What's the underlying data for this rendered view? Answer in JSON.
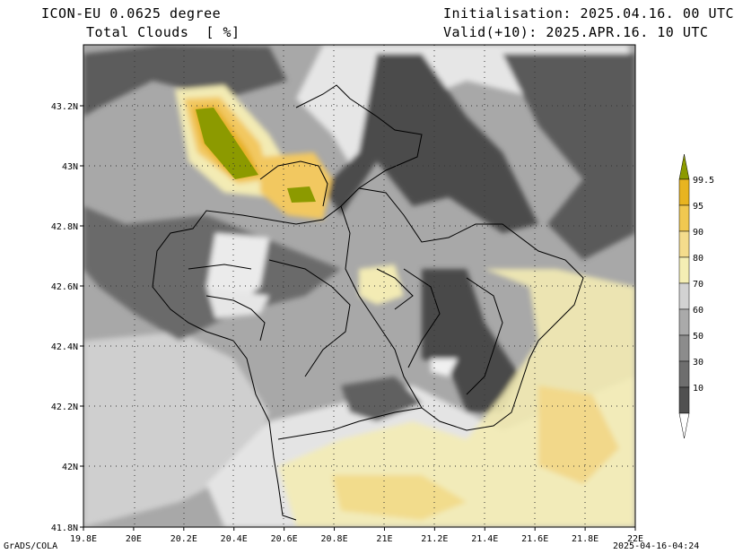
{
  "header": {
    "model": "ICON-EU 0.0625 degree",
    "variable": "Total Clouds  [ %]",
    "init": "Initialisation: 2025.04.16. 00 UTC",
    "valid": "Valid(+10): 2025.APR.16. 10 UTC"
  },
  "footer": {
    "credit": "GrADS/COLA",
    "timestamp": "2025-04-16-04:24"
  },
  "map": {
    "lon_ticks": [
      "19.8E",
      "20E",
      "20.2E",
      "20.4E",
      "20.6E",
      "20.8E",
      "21E",
      "21.2E",
      "21.4E",
      "21.6E",
      "21.8E",
      "22E"
    ],
    "lat_ticks": [
      "43.2N",
      "43N",
      "42.8N",
      "42.6N",
      "42.4N",
      "42.2N",
      "42N",
      "41.8N"
    ],
    "lon_range": [
      19.8,
      22.0
    ],
    "lat_range": [
      41.8,
      43.4
    ],
    "grid": "dotted"
  },
  "legend": {
    "labels": [
      "99.5",
      "95",
      "90",
      "80",
      "70",
      "60",
      "50",
      "30",
      "10"
    ],
    "colors": [
      "#8c9a00",
      "#e8b420",
      "#f0c850",
      "#f4dc8c",
      "#f4eeb4",
      "#d2d2d2",
      "#aaaaaa",
      "#8c8c8c",
      "#6e6e6e",
      "#505050",
      "#ffffff"
    ]
  }
}
